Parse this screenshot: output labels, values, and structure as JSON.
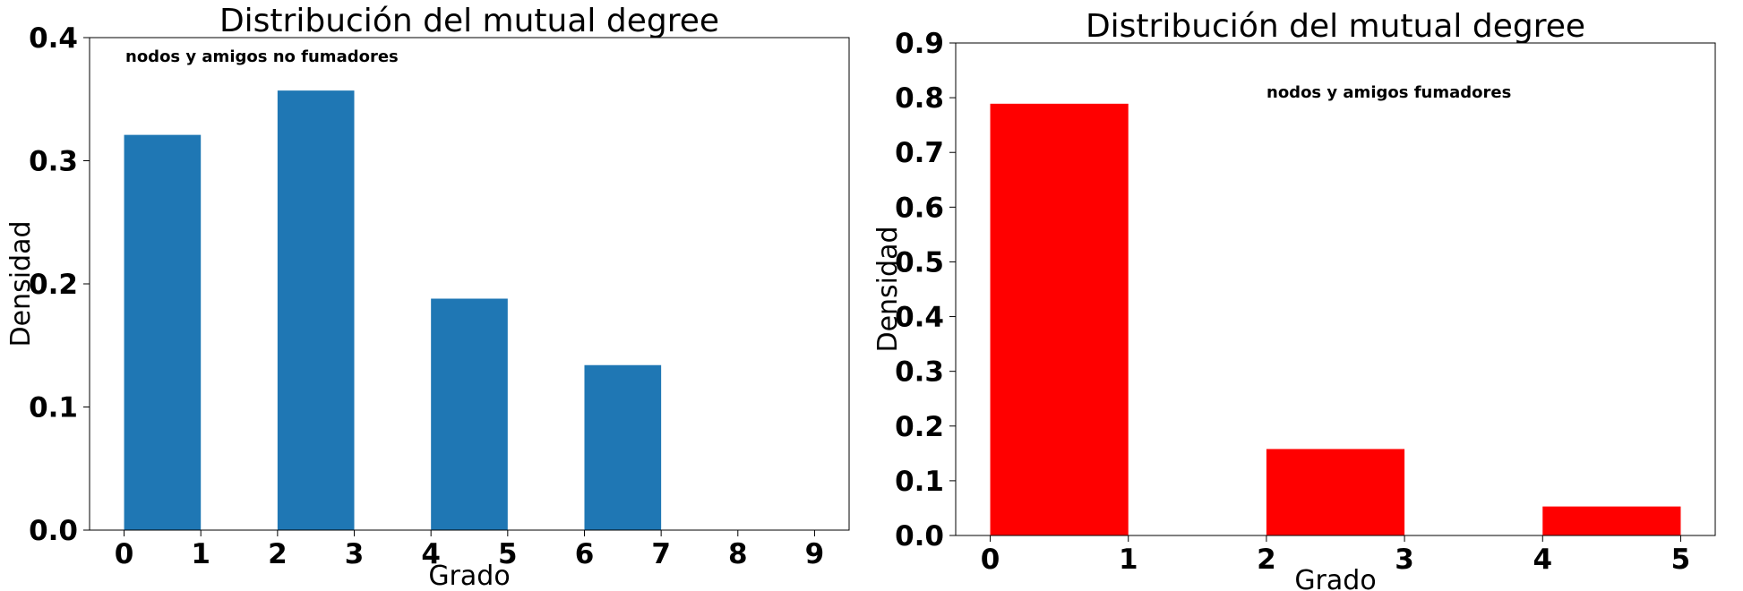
{
  "chart_data": [
    {
      "type": "bar",
      "title": "Distribución del mutual degree",
      "xlabel": "Grado",
      "ylabel": "Densidad",
      "annotation": "nodos y amigos no fumadores",
      "color": "#1f77b4",
      "xlim": [
        -0.45,
        9.45
      ],
      "ylim": [
        0,
        0.4
      ],
      "xticks": [
        "0",
        "1",
        "2",
        "3",
        "4",
        "5",
        "6",
        "7",
        "8",
        "9"
      ],
      "yticks": [
        "0.0",
        "0.1",
        "0.2",
        "0.3",
        "0.4"
      ],
      "bins": [
        {
          "start": 0,
          "end": 1,
          "value": 0.321
        },
        {
          "start": 2,
          "end": 3,
          "value": 0.357
        },
        {
          "start": 4,
          "end": 5,
          "value": 0.188
        },
        {
          "start": 6,
          "end": 7,
          "value": 0.134
        }
      ],
      "grid": false
    },
    {
      "type": "bar",
      "title": "Distribución del mutual degree",
      "xlabel": "Grado",
      "ylabel": "Densidad",
      "annotation": "nodos y amigos fumadores",
      "color": "#ff0000",
      "xlim": [
        -0.25,
        5.25
      ],
      "ylim": [
        0,
        0.9
      ],
      "xticks": [
        "0",
        "1",
        "2",
        "3",
        "4",
        "5"
      ],
      "yticks": [
        "0.0",
        "0.1",
        "0.2",
        "0.3",
        "0.4",
        "0.5",
        "0.6",
        "0.7",
        "0.8",
        "0.9"
      ],
      "bins": [
        {
          "start": 0,
          "end": 1,
          "value": 0.789
        },
        {
          "start": 2,
          "end": 3,
          "value": 0.158
        },
        {
          "start": 4,
          "end": 5,
          "value": 0.053
        }
      ],
      "grid": false
    }
  ]
}
